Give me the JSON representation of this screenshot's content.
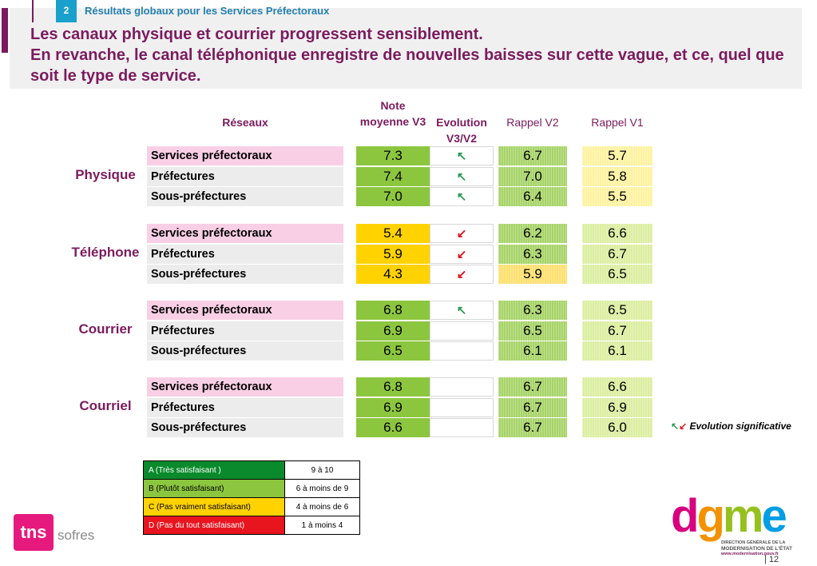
{
  "section": {
    "number": "2",
    "title": "Résultats globaux pour les Services Préfectoraux"
  },
  "headline": "Les canaux physique et courrier progressent sensiblement.\nEn revanche, le canal téléphonique enregistre de nouvelles baisses sur cette vague, et ce, quel que soit le type de service.",
  "columns": {
    "reseaux": "Réseaux",
    "note": "Note moyenne V3",
    "evolution": "Evolution V3/V2",
    "v2": "Rappel V2",
    "v1": "Rappel V1"
  },
  "groups": [
    {
      "name": "Physique",
      "rows": [
        {
          "label": "Services préfectoraux",
          "v3": "7.3",
          "evo": "↖",
          "v2": "6.7",
          "v1": "5.7"
        },
        {
          "label": "Préfectures",
          "v3": "7.4",
          "evo": "↖",
          "v2": "7.0",
          "v1": "5.8"
        },
        {
          "label": "Sous-préfectures",
          "v3": "7.0",
          "evo": "↖",
          "v2": "6.4",
          "v1": "5.5"
        }
      ]
    },
    {
      "name": "Téléphone",
      "rows": [
        {
          "label": "Services préfectoraux",
          "v3": "5.4",
          "evo": "↙",
          "v2": "6.2",
          "v1": "6.6"
        },
        {
          "label": "Préfectures",
          "v3": "5.9",
          "evo": "↙",
          "v2": "6.3",
          "v1": "6.7"
        },
        {
          "label": "Sous-préfectures",
          "v3": "4.3",
          "evo": "↙",
          "v2": "5.9",
          "v1": "6.5"
        }
      ]
    },
    {
      "name": "Courrier",
      "rows": [
        {
          "label": "Services préfectoraux",
          "v3": "6.8",
          "evo": "↖",
          "v2": "6.3",
          "v1": "6.5"
        },
        {
          "label": "Préfectures",
          "v3": "6.9",
          "evo": "",
          "v2": "6.5",
          "v1": "6.7"
        },
        {
          "label": "Sous-préfectures",
          "v3": "6.5",
          "evo": "",
          "v2": "6.1",
          "v1": "6.1"
        }
      ]
    },
    {
      "name": "Courriel",
      "rows": [
        {
          "label": "Services préfectoraux",
          "v3": "6.8",
          "evo": "",
          "v2": "6.7",
          "v1": "6.6"
        },
        {
          "label": "Préfectures",
          "v3": "6.9",
          "evo": "",
          "v2": "6.7",
          "v1": "6.9"
        },
        {
          "label": "Sous-préfectures",
          "v3": "6.6",
          "evo": "",
          "v2": "6.7",
          "v1": "6.0"
        }
      ]
    }
  ],
  "evolution_legend": {
    "up": "↖",
    "down": "↙",
    "text": "Evolution significative"
  },
  "scale": [
    {
      "label": "A (Très satisfaisant )",
      "range": "9 à 10",
      "color": "#0a8a2c"
    },
    {
      "label": "B (Plutôt satisfaisant)",
      "range": "6 à moins de 9",
      "color": "#8cc63f"
    },
    {
      "label": "C (Pas vraiment satisfaisant)",
      "range": "4 à moins de 6",
      "color": "#ffd200"
    },
    {
      "label": "D (Pas du tout satisfaisant)",
      "range": "1 à moins 4",
      "color": "#e8141e"
    }
  ],
  "logos": {
    "tns": "tns",
    "sofres": "sofres",
    "dgme": {
      "d": "d",
      "g": "g",
      "m": "m",
      "e": "e"
    },
    "dgme_line1": "DIRECTION GÉNÉRALE DE LA",
    "dgme_line2": "MODERNISATION DE L'ÉTAT",
    "dgme_url": "www.modernisation.gouv.fr"
  },
  "page_number": "12"
}
